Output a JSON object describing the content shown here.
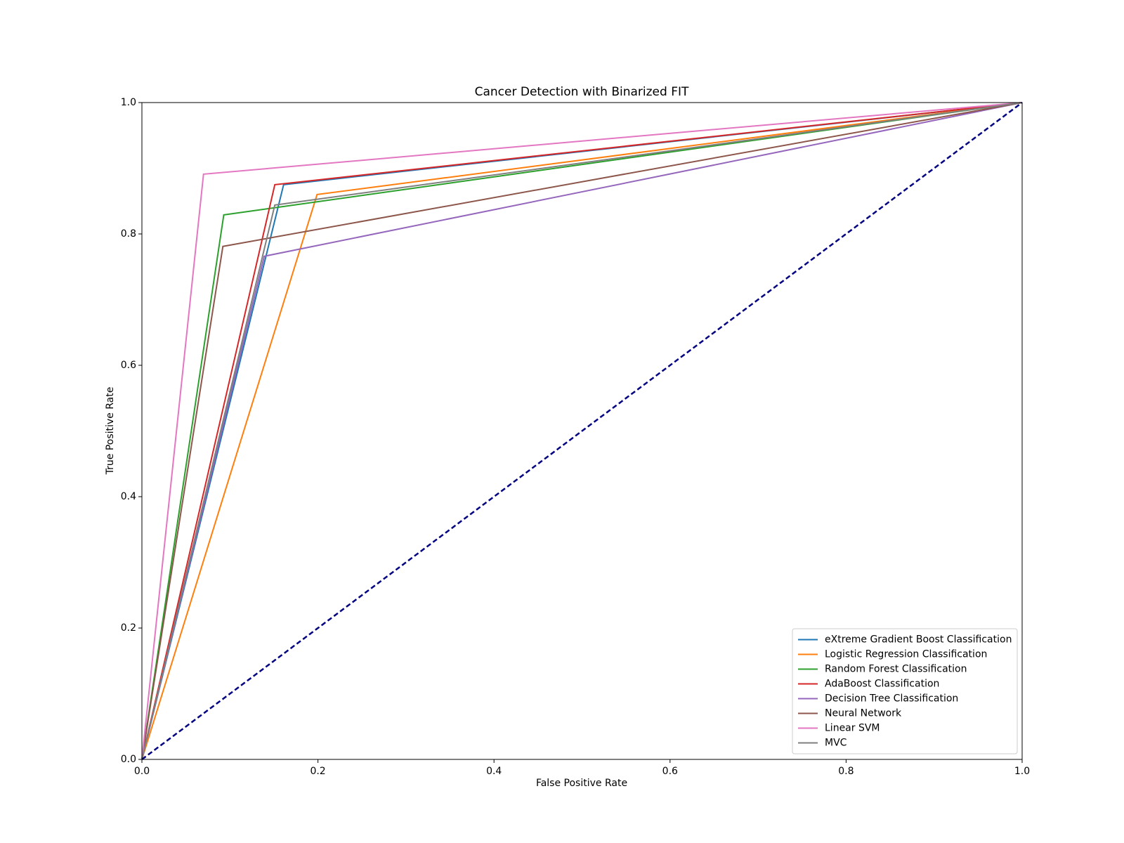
{
  "chart_data": {
    "type": "line",
    "title": "Cancer Detection with Binarized FIT",
    "x_label": "False Positive Rate",
    "y_label": "True Positive Rate",
    "xlim": [
      0,
      1
    ],
    "ylim": [
      0,
      1
    ],
    "xticks": [
      {
        "value": 0,
        "label": "0.0"
      },
      0.2,
      0.4,
      0.6,
      0.8,
      {
        "value": 1,
        "label": "1.0"
      }
    ],
    "yticks": [
      {
        "value": 0,
        "label": "0.0"
      },
      0.2,
      0.4,
      0.6,
      0.8,
      {
        "value": 1,
        "label": "1.0"
      }
    ],
    "grid": false,
    "legend_position": "lower-right",
    "series": [
      {
        "name": "eXtreme Gradient Boost Classification",
        "color": "#1f77b4",
        "x": [
          0,
          0.161,
          1
        ],
        "values": [
          0,
          0.875,
          1
        ]
      },
      {
        "name": "Logistic Regression Classification",
        "color": "#ff7f0e",
        "x": [
          0,
          0.199,
          1
        ],
        "values": [
          0,
          0.86,
          1
        ]
      },
      {
        "name": "Random Forest Classification",
        "color": "#2ca02c",
        "x": [
          0,
          0.093,
          1
        ],
        "values": [
          0,
          0.829,
          1
        ]
      },
      {
        "name": "AdaBoost Classification",
        "color": "#d62728",
        "x": [
          0,
          0.151,
          1
        ],
        "values": [
          0,
          0.875,
          1
        ]
      },
      {
        "name": "Decision Tree Classification",
        "color": "#9467bd",
        "x": [
          0,
          0.139,
          1
        ],
        "values": [
          0,
          0.766,
          1
        ]
      },
      {
        "name": "Neural Network",
        "color": "#8c564b",
        "x": [
          0,
          0.092,
          1
        ],
        "values": [
          0,
          0.781,
          1
        ]
      },
      {
        "name": "Linear SVM",
        "color": "#e377c2",
        "x": [
          0,
          0.07,
          1
        ],
        "values": [
          0,
          0.891,
          1
        ]
      },
      {
        "name": "MVC",
        "color": "#7f7f7f",
        "x": [
          0,
          0.151,
          1
        ],
        "values": [
          0,
          0.844,
          1
        ]
      }
    ],
    "reference_line": {
      "color": "#000080",
      "dashed": true,
      "x": [
        0,
        1
      ],
      "values": [
        0,
        1
      ]
    }
  }
}
